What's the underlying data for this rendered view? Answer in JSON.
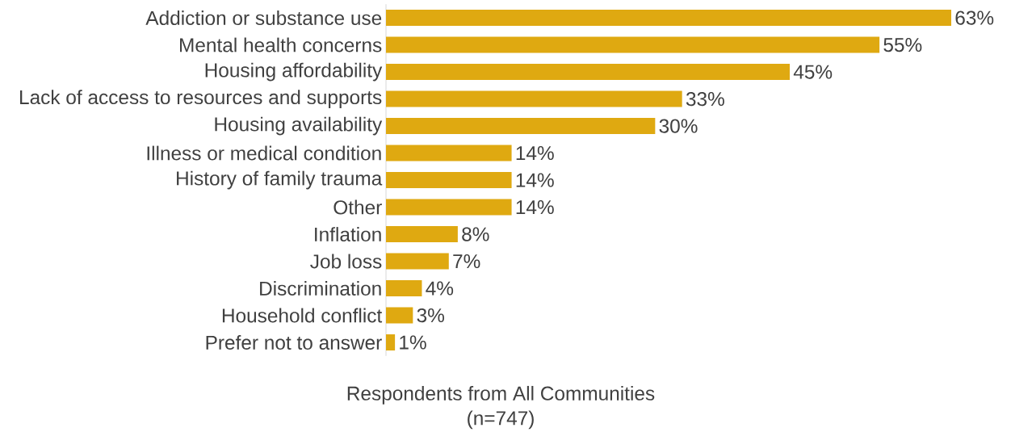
{
  "chart_data": {
    "type": "bar",
    "orientation": "horizontal",
    "xlabel": "Respondents from All Communities",
    "annotations": [
      "(n=747)"
    ],
    "categories": [
      "Addiction or substance use",
      "Mental health concerns",
      "Housing affordability",
      "Lack of access to resources and supports",
      "Housing availability",
      "Illness or medical condition",
      "History of family trauma",
      "Other",
      "Inflation",
      "Job loss",
      "Discrimination",
      "Household conflict",
      "Prefer not to answer"
    ],
    "values": [
      63,
      55,
      45,
      33,
      30,
      14,
      14,
      14,
      8,
      7,
      4,
      3,
      1
    ],
    "value_labels": [
      "63%",
      "55%",
      "45%",
      "33%",
      "30%",
      "14%",
      "14%",
      "14%",
      "8%",
      "7%",
      "4%",
      "3%",
      "1%"
    ],
    "color": "#dfa911"
  }
}
